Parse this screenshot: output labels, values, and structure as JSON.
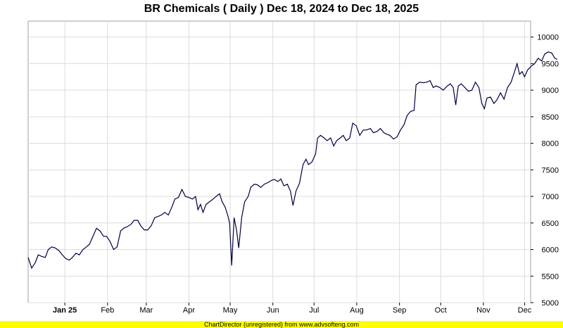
{
  "chart_data": {
    "type": "line",
    "title": "BR Chemicals ( Daily ) Dec 18, 2024 to Dec 18, 2025",
    "xlabel": "",
    "ylabel": "",
    "ylim": [
      5000,
      10300
    ],
    "y_ticks": [
      5000,
      5500,
      6000,
      6500,
      7000,
      7500,
      8000,
      8500,
      9000,
      9500,
      10000
    ],
    "y_axis_position": "right",
    "grid": true,
    "x_ticks": [
      {
        "label": "Jan 25",
        "t": 0.073,
        "bold": true
      },
      {
        "label": "Feb",
        "t": 0.158
      },
      {
        "label": "Mar",
        "t": 0.235
      },
      {
        "label": "Apr",
        "t": 0.32
      },
      {
        "label": "May",
        "t": 0.402
      },
      {
        "label": "Jun",
        "t": 0.487
      },
      {
        "label": "Jul",
        "t": 0.569
      },
      {
        "label": "Aug",
        "t": 0.654
      },
      {
        "label": "Sep",
        "t": 0.739
      },
      {
        "label": "Oct",
        "t": 0.821
      },
      {
        "label": "Nov",
        "t": 0.906
      },
      {
        "label": "Dec",
        "t": 0.988
      }
    ],
    "line_color": "#000040",
    "series": [
      {
        "points": [
          [
            0.0,
            5850
          ],
          [
            0.007,
            5650
          ],
          [
            0.014,
            5750
          ],
          [
            0.02,
            5900
          ],
          [
            0.027,
            5870
          ],
          [
            0.034,
            5850
          ],
          [
            0.04,
            6000
          ],
          [
            0.047,
            6050
          ],
          [
            0.054,
            6030
          ],
          [
            0.061,
            5980
          ],
          [
            0.068,
            5900
          ],
          [
            0.075,
            5830
          ],
          [
            0.082,
            5800
          ],
          [
            0.088,
            5850
          ],
          [
            0.095,
            5930
          ],
          [
            0.102,
            5900
          ],
          [
            0.109,
            6000
          ],
          [
            0.116,
            6050
          ],
          [
            0.122,
            6100
          ],
          [
            0.129,
            6250
          ],
          [
            0.136,
            6400
          ],
          [
            0.143,
            6350
          ],
          [
            0.15,
            6250
          ],
          [
            0.156,
            6250
          ],
          [
            0.163,
            6150
          ],
          [
            0.17,
            6000
          ],
          [
            0.177,
            6050
          ],
          [
            0.184,
            6350
          ],
          [
            0.19,
            6400
          ],
          [
            0.197,
            6430
          ],
          [
            0.204,
            6470
          ],
          [
            0.211,
            6550
          ],
          [
            0.218,
            6550
          ],
          [
            0.224,
            6450
          ],
          [
            0.231,
            6370
          ],
          [
            0.238,
            6370
          ],
          [
            0.245,
            6450
          ],
          [
            0.252,
            6600
          ],
          [
            0.258,
            6620
          ],
          [
            0.265,
            6650
          ],
          [
            0.272,
            6700
          ],
          [
            0.279,
            6650
          ],
          [
            0.286,
            6800
          ],
          [
            0.292,
            6950
          ],
          [
            0.299,
            6980
          ],
          [
            0.306,
            7130
          ],
          [
            0.313,
            7000
          ],
          [
            0.32,
            6980
          ],
          [
            0.327,
            6950
          ],
          [
            0.333,
            7000
          ],
          [
            0.338,
            6750
          ],
          [
            0.343,
            6850
          ],
          [
            0.348,
            6700
          ],
          [
            0.354,
            6850
          ],
          [
            0.361,
            6900
          ],
          [
            0.368,
            6950
          ],
          [
            0.374,
            7000
          ],
          [
            0.381,
            7050
          ],
          [
            0.386,
            6900
          ],
          [
            0.392,
            6800
          ],
          [
            0.397,
            6650
          ],
          [
            0.401,
            6500
          ],
          [
            0.405,
            5700
          ],
          [
            0.41,
            6600
          ],
          [
            0.415,
            6350
          ],
          [
            0.419,
            6030
          ],
          [
            0.425,
            6600
          ],
          [
            0.431,
            6900
          ],
          [
            0.438,
            7000
          ],
          [
            0.443,
            7170
          ],
          [
            0.45,
            7230
          ],
          [
            0.456,
            7220
          ],
          [
            0.463,
            7170
          ],
          [
            0.47,
            7230
          ],
          [
            0.477,
            7260
          ],
          [
            0.484,
            7300
          ],
          [
            0.49,
            7320
          ],
          [
            0.497,
            7280
          ],
          [
            0.503,
            7330
          ],
          [
            0.509,
            7200
          ],
          [
            0.516,
            7230
          ],
          [
            0.522,
            7100
          ],
          [
            0.527,
            6830
          ],
          [
            0.533,
            7100
          ],
          [
            0.54,
            7250
          ],
          [
            0.547,
            7600
          ],
          [
            0.553,
            7700
          ],
          [
            0.558,
            7600
          ],
          [
            0.565,
            7650
          ],
          [
            0.572,
            7800
          ],
          [
            0.576,
            8100
          ],
          [
            0.582,
            8150
          ],
          [
            0.589,
            8100
          ],
          [
            0.595,
            8050
          ],
          [
            0.602,
            8100
          ],
          [
            0.608,
            7950
          ],
          [
            0.614,
            8050
          ],
          [
            0.621,
            8100
          ],
          [
            0.627,
            8150
          ],
          [
            0.633,
            8050
          ],
          [
            0.64,
            8100
          ],
          [
            0.646,
            8380
          ],
          [
            0.653,
            8330
          ],
          [
            0.66,
            8150
          ],
          [
            0.667,
            8250
          ],
          [
            0.674,
            8250
          ],
          [
            0.681,
            8280
          ],
          [
            0.687,
            8200
          ],
          [
            0.694,
            8220
          ],
          [
            0.701,
            8280
          ],
          [
            0.708,
            8200
          ],
          [
            0.714,
            8170
          ],
          [
            0.72,
            8150
          ],
          [
            0.727,
            8080
          ],
          [
            0.734,
            8120
          ],
          [
            0.741,
            8250
          ],
          [
            0.748,
            8350
          ],
          [
            0.754,
            8520
          ],
          [
            0.761,
            8600
          ],
          [
            0.768,
            8620
          ],
          [
            0.772,
            9100
          ],
          [
            0.779,
            9150
          ],
          [
            0.786,
            9140
          ],
          [
            0.793,
            9150
          ],
          [
            0.8,
            9180
          ],
          [
            0.806,
            9050
          ],
          [
            0.812,
            9080
          ],
          [
            0.819,
            9050
          ],
          [
            0.826,
            9000
          ],
          [
            0.833,
            9070
          ],
          [
            0.84,
            9120
          ],
          [
            0.846,
            9050
          ],
          [
            0.851,
            8720
          ],
          [
            0.856,
            9080
          ],
          [
            0.862,
            9120
          ],
          [
            0.869,
            9050
          ],
          [
            0.876,
            8980
          ],
          [
            0.883,
            9000
          ],
          [
            0.89,
            9150
          ],
          [
            0.897,
            9050
          ],
          [
            0.903,
            8750
          ],
          [
            0.908,
            8650
          ],
          [
            0.913,
            8850
          ],
          [
            0.92,
            8870
          ],
          [
            0.927,
            8750
          ],
          [
            0.933,
            8820
          ],
          [
            0.94,
            8950
          ],
          [
            0.947,
            8830
          ],
          [
            0.954,
            9050
          ],
          [
            0.961,
            9150
          ],
          [
            0.968,
            9350
          ],
          [
            0.973,
            9500
          ],
          [
            0.978,
            9300
          ],
          [
            0.983,
            9350
          ],
          [
            0.988,
            9250
          ],
          [
            0.994,
            9380
          ],
          [
            1.001,
            9450
          ],
          [
            1.008,
            9500
          ],
          [
            1.015,
            9600
          ],
          [
            1.022,
            9550
          ],
          [
            1.028,
            9680
          ],
          [
            1.035,
            9720
          ],
          [
            1.042,
            9700
          ],
          [
            1.048,
            9600
          ],
          [
            1.053,
            9580
          ]
        ]
      }
    ]
  },
  "footer": {
    "text": "ChartDirector (unregistered) from www.advsofteng.com"
  }
}
